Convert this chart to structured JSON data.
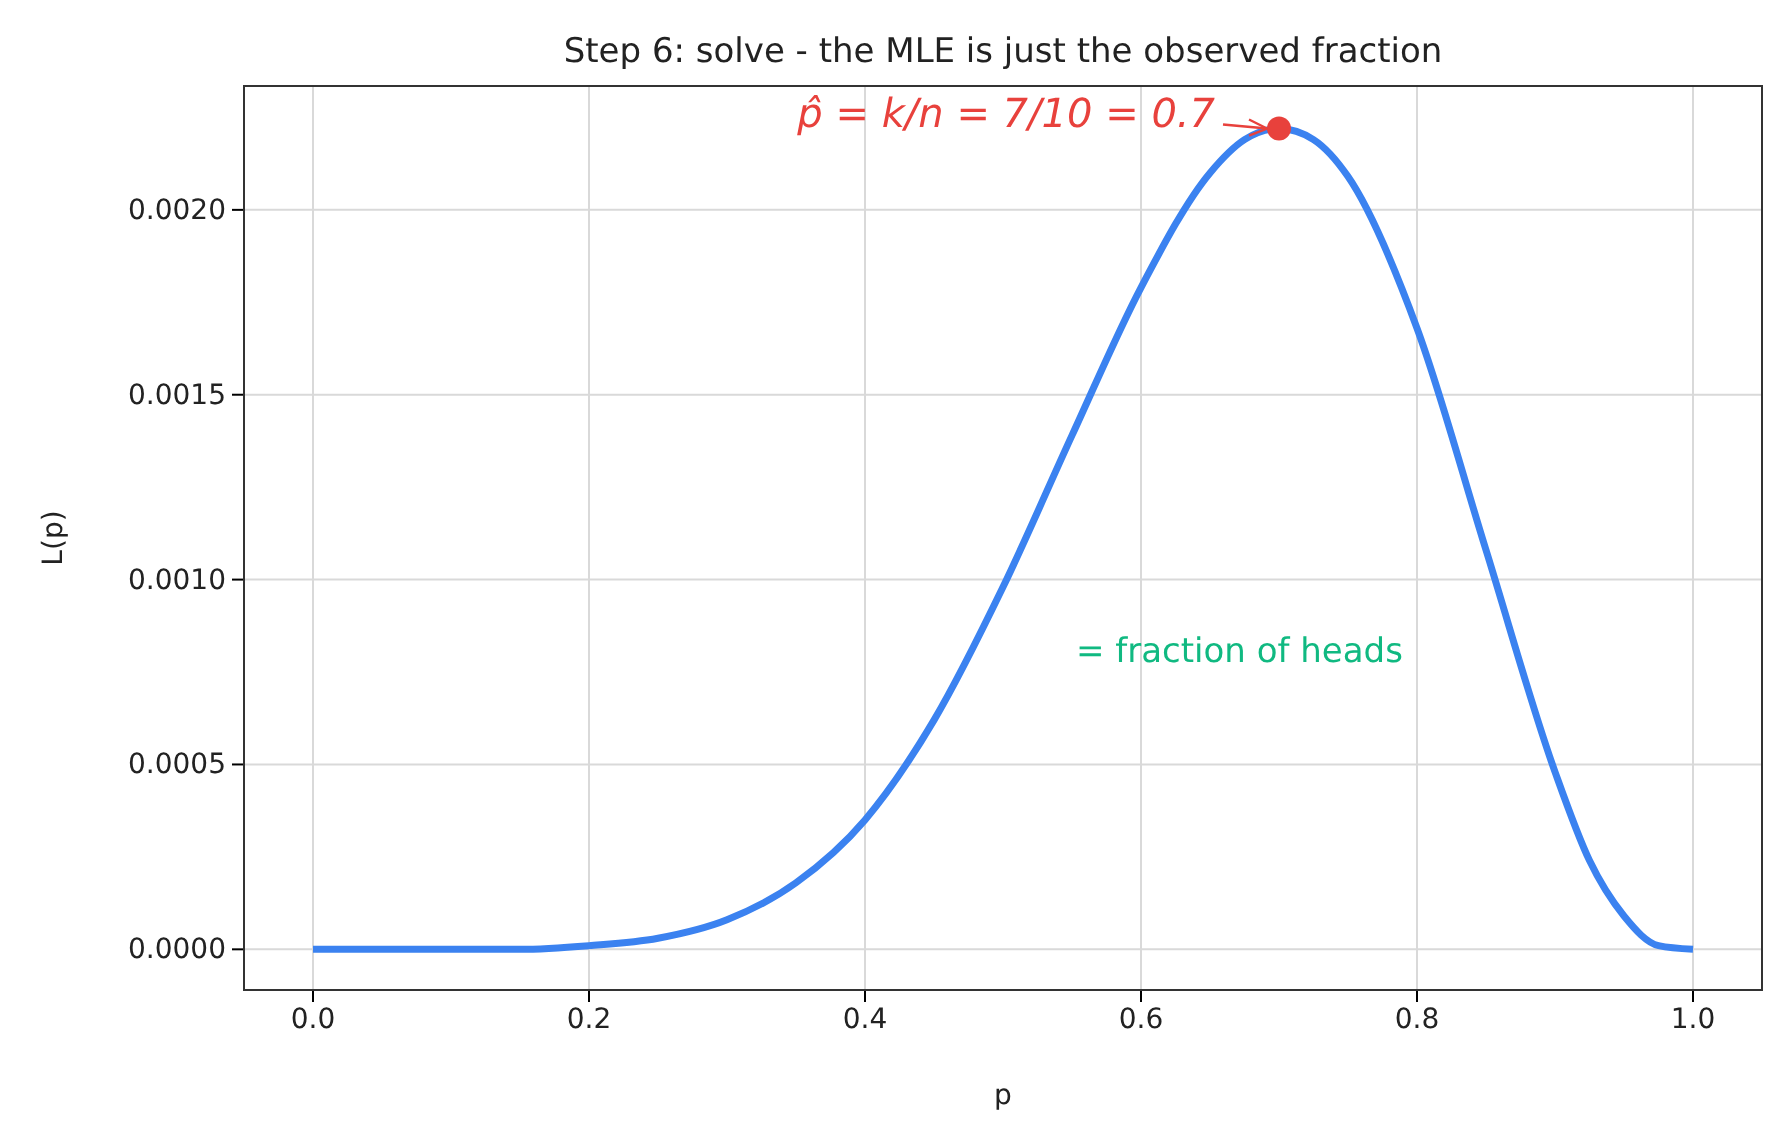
{
  "chart_data": {
    "type": "line",
    "title": "Step 6: solve - the MLE is just the observed fraction",
    "xlabel": "p",
    "ylabel": "L(p)",
    "xlim": [
      -0.05,
      1.05
    ],
    "ylim": [
      -0.00011,
      0.002335
    ],
    "xticks": [
      {
        "value": 0,
        "label": "0.0"
      },
      {
        "value": 0.2,
        "label": "0.2"
      },
      {
        "value": 0.4,
        "label": "0.4"
      },
      {
        "value": 0.6,
        "label": "0.6"
      },
      {
        "value": 0.8,
        "label": "0.8"
      },
      {
        "value": 1,
        "label": "1.0"
      }
    ],
    "yticks": [
      {
        "value": 0,
        "label": "0.0000"
      },
      {
        "value": 0.0005,
        "label": "0.0005"
      },
      {
        "value": 0.001,
        "label": "0.0010"
      },
      {
        "value": 0.0015,
        "label": "0.0015"
      },
      {
        "value": 0.002,
        "label": "0.0020"
      }
    ],
    "grid": true,
    "series": [
      {
        "color": "#3b82f0",
        "x": [
          0,
          0.05,
          0.1,
          0.15,
          0.2,
          0.25,
          0.3,
          0.35,
          0.4,
          0.45,
          0.5,
          0.55,
          0.6,
          0.65,
          0.675,
          0.7,
          0.725,
          0.75,
          0.8,
          0.85,
          0.9,
          0.925,
          0.95,
          0.975,
          1
        ],
        "values": [
          0,
          0,
          0,
          0,
          1e-05,
          3e-05,
          8e-05,
          0.00018,
          0.00035,
          0.00062,
          0.00098,
          0.00139,
          0.00179,
          0.0021,
          0.00219,
          0.00222,
          0.00219,
          0.00209,
          0.00168,
          0.00108,
          0.00048,
          0.00024,
          9e-05,
          1e-05,
          0
        ]
      },
      {
        "type": "scatter",
        "color": "#e8413c",
        "x": [
          0.7
        ],
        "values": [
          0.00222
        ]
      }
    ],
    "annotations": [
      {
        "text": "p̂ = k/n = 7/10 = 0.7",
        "x": 0.7,
        "y": 0.00222
      },
      "= fraction of heads"
    ]
  }
}
